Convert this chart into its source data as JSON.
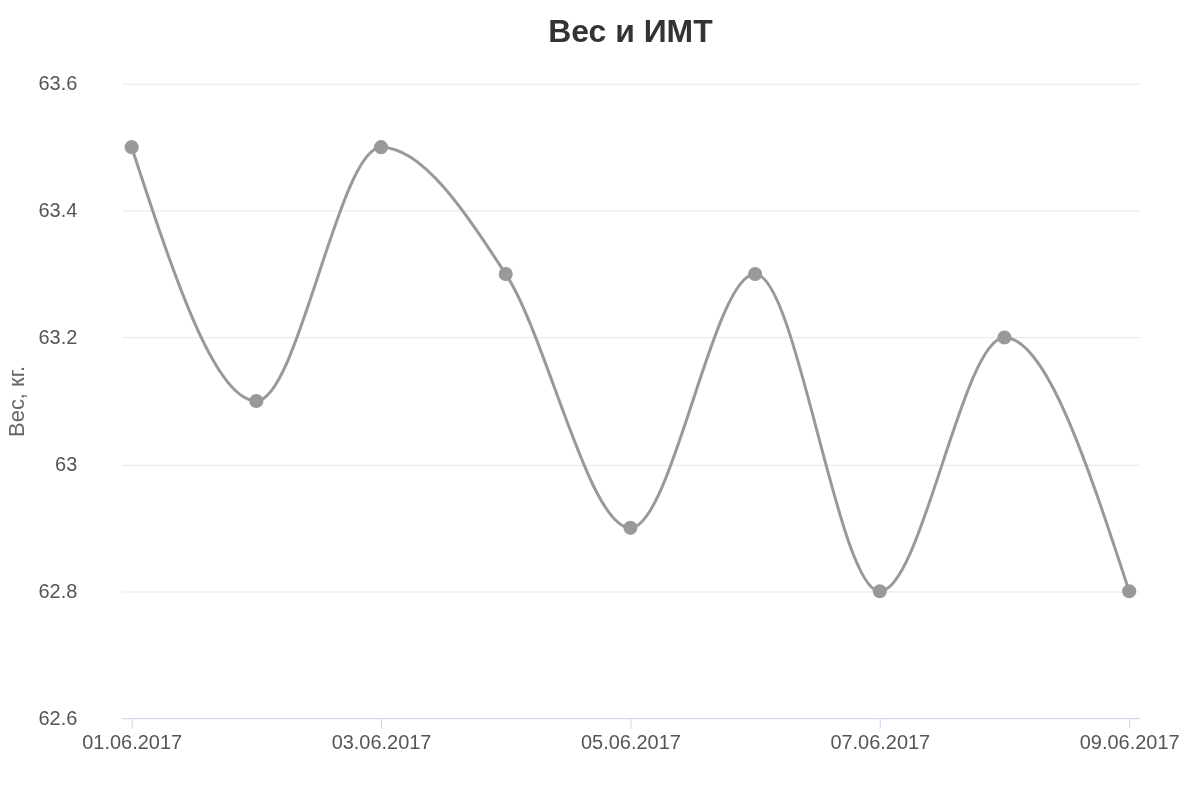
{
  "chart_data": {
    "type": "line",
    "title": "Вес и ИМТ",
    "ylabel": "Вес, кг.",
    "categories": [
      "01.06.2017",
      null,
      "03.06.2017",
      null,
      "05.06.2017",
      null,
      "07.06.2017",
      null,
      "09.06.2017"
    ],
    "series": [
      {
        "color": "#999999",
        "values": [
          63.5,
          63.1,
          63.5,
          63.3,
          62.9,
          63.3,
          62.8,
          63.2,
          62.8
        ]
      }
    ],
    "ylim": [
      62.6,
      63.6
    ],
    "yticks": [
      62.6,
      62.8,
      63,
      63.2,
      63.4,
      63.6
    ],
    "grid": "y",
    "marker": "circle",
    "line_style": "solid"
  }
}
